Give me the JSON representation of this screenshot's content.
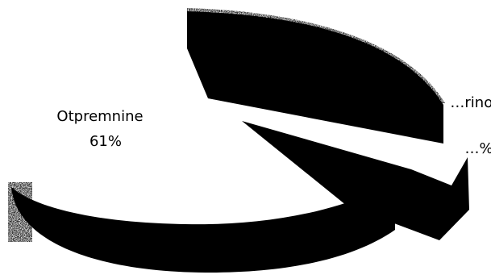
{
  "chart_data": {
    "type": "pie",
    "style": "3d-exploded",
    "series": [
      {
        "slices": [
          {
            "label": "Otpremnine",
            "value": 61,
            "value_label": "61%",
            "color": "#ffffff",
            "side_color": "#000000"
          },
          {
            "label": "…rinosi",
            "value": 39,
            "value_label": "…%",
            "color": "#000000",
            "side_color": "#000000"
          }
        ]
      }
    ],
    "title": "",
    "legend": "none"
  }
}
